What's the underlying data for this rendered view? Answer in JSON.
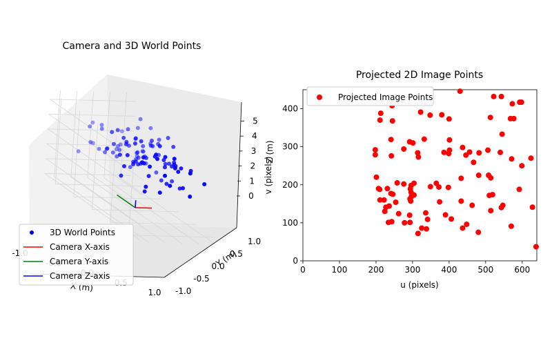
{
  "chart_data": [
    {
      "type": "scatter3d",
      "title": "Camera and 3D World Points",
      "xlabel": "X (m)",
      "ylabel": "Y (m)",
      "zlabel": "Z (m)",
      "xlim": [
        -1.0,
        1.0
      ],
      "ylim": [
        -1.0,
        1.0
      ],
      "zlim": [
        0,
        5
      ],
      "x_ticks": [
        "-1.0",
        "-0.5",
        "0.0",
        "0.5",
        "1.0"
      ],
      "y_ticks": [
        "-1.0",
        "-0.5",
        "0.0",
        "0.5",
        "1.0"
      ],
      "z_ticks": [
        "0",
        "1",
        "2",
        "3",
        "4",
        "5"
      ],
      "grid": true,
      "legend_position": "lower-left",
      "legend": [
        {
          "label": "3D World Points",
          "color": "#0000ff",
          "marker": "point"
        },
        {
          "label": "Camera X-axis",
          "color": "#ff0000",
          "marker": "line"
        },
        {
          "label": "Camera Y-axis",
          "color": "#008000",
          "marker": "line"
        },
        {
          "label": "Camera Z-axis",
          "color": "#0000ff",
          "marker": "line"
        }
      ],
      "camera_axes": [
        {
          "name": "Camera X-axis",
          "color": "#ff0000",
          "from": [
            0,
            0,
            0
          ],
          "to": [
            0.5,
            0,
            0
          ]
        },
        {
          "name": "Camera Y-axis",
          "color": "#008000",
          "from": [
            0,
            0,
            0
          ],
          "to": [
            0,
            0.5,
            0
          ]
        },
        {
          "name": "Camera Z-axis",
          "color": "#0000ff",
          "from": [
            0,
            0,
            0
          ],
          "to": [
            0,
            0,
            0.5
          ]
        }
      ],
      "points_note": "100 random world points, x,y in [-1,1], z in [2,5]",
      "point_count": 100
    },
    {
      "type": "scatter",
      "title": "Projected 2D Image Points",
      "xlabel": "u (pixels)",
      "ylabel": "v (pixels)",
      "xlim": [
        0,
        640
      ],
      "ylim": [
        0,
        450
      ],
      "x_ticks": [
        "0",
        "100",
        "200",
        "300",
        "400",
        "500",
        "600"
      ],
      "y_ticks": [
        "0",
        "100",
        "200",
        "300",
        "400"
      ],
      "grid": false,
      "legend_position": "top-left",
      "series": [
        {
          "name": "Projected Image Points",
          "color": "#ff0000",
          "points": [
            [
              430,
              446
            ],
            [
              522,
              432
            ],
            [
              543,
              432
            ],
            [
              598,
              417
            ],
            [
              593,
              417
            ],
            [
              573,
              413
            ],
            [
              577,
              374
            ],
            [
              568,
              374
            ],
            [
              513,
              377
            ],
            [
              244,
              408
            ],
            [
              213,
              388
            ],
            [
              211,
              370
            ],
            [
              245,
              368
            ],
            [
              322,
              391
            ],
            [
              380,
              384
            ],
            [
              348,
              383
            ],
            [
              400,
              373
            ],
            [
              545,
              333
            ],
            [
              332,
              320
            ],
            [
              241,
              319
            ],
            [
              292,
              313
            ],
            [
              301,
              310
            ],
            [
              401,
              318
            ],
            [
              437,
              298
            ],
            [
              456,
              286
            ],
            [
              446,
              278
            ],
            [
              386,
              285
            ],
            [
              399,
              282
            ],
            [
              401,
              291
            ],
            [
              198,
              292
            ],
            [
              198,
              279
            ],
            [
              242,
              276
            ],
            [
              276,
              294
            ],
            [
              314,
              284
            ],
            [
              316,
              273
            ],
            [
              482,
              284
            ],
            [
              506,
              291
            ],
            [
              540,
              285
            ],
            [
              571,
              268
            ],
            [
              599,
              250
            ],
            [
              624,
              270
            ],
            [
              467,
              259
            ],
            [
              201,
              220
            ],
            [
              210,
              188
            ],
            [
              207,
              190
            ],
            [
              231,
              190
            ],
            [
              241,
              177
            ],
            [
              246,
              175
            ],
            [
              258,
              205
            ],
            [
              276,
              202
            ],
            [
              296,
              198
            ],
            [
              304,
              204
            ],
            [
              294,
              189
            ],
            [
              296,
              180
            ],
            [
              304,
              173
            ],
            [
              297,
              169
            ],
            [
              293,
              163
            ],
            [
              295,
              157
            ],
            [
              349,
              195
            ],
            [
              365,
              204
            ],
            [
              372,
              194
            ],
            [
              398,
              193
            ],
            [
              433,
              217
            ],
            [
              508,
              225
            ],
            [
              514,
              218
            ],
            [
              481,
              225
            ],
            [
              510,
              172
            ],
            [
              519,
              174
            ],
            [
              592,
              188
            ],
            [
              628,
              141
            ],
            [
              211,
              160
            ],
            [
              222,
              160
            ],
            [
              227,
              141
            ],
            [
              236,
              144
            ],
            [
              254,
              154
            ],
            [
              224,
              130
            ],
            [
              234,
              101
            ],
            [
              243,
              103
            ],
            [
              262,
              124
            ],
            [
              278,
              100
            ],
            [
              292,
              120
            ],
            [
              293,
              101
            ],
            [
              315,
              72
            ],
            [
              336,
              126
            ],
            [
              341,
              109
            ],
            [
              338,
              84
            ],
            [
              325,
              86
            ],
            [
              374,
              155
            ],
            [
              390,
              121
            ],
            [
              406,
              110
            ],
            [
              433,
              157
            ],
            [
              448,
              96
            ],
            [
              437,
              86
            ],
            [
              463,
              146
            ],
            [
              480,
              75
            ],
            [
              514,
              132
            ],
            [
              543,
              140
            ],
            [
              547,
              146
            ],
            [
              570,
              91
            ],
            [
              638,
              37
            ]
          ]
        }
      ]
    }
  ]
}
